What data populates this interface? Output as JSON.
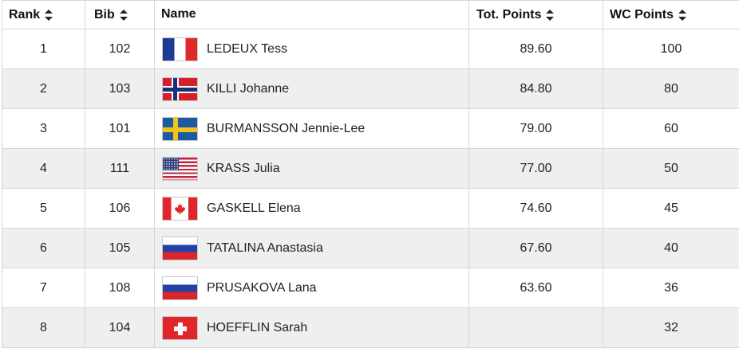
{
  "table": {
    "headers": {
      "rank": "Rank",
      "bib": "Bib",
      "name": "Name",
      "tot": "Tot. Points",
      "wc": "WC Points"
    },
    "rows": [
      {
        "rank": "1",
        "bib": "102",
        "flag": "france-flag-icon",
        "name": "LEDEUX Tess",
        "tot": "89.60",
        "wc": "100"
      },
      {
        "rank": "2",
        "bib": "103",
        "flag": "norway-flag-icon",
        "name": "KILLI Johanne",
        "tot": "84.80",
        "wc": "80"
      },
      {
        "rank": "3",
        "bib": "101",
        "flag": "sweden-flag-icon",
        "name": "BURMANSSON Jennie-Lee",
        "tot": "79.00",
        "wc": "60"
      },
      {
        "rank": "4",
        "bib": "111",
        "flag": "usa-flag-icon",
        "name": "KRASS Julia",
        "tot": "77.00",
        "wc": "50"
      },
      {
        "rank": "5",
        "bib": "106",
        "flag": "canada-flag-icon",
        "name": "GASKELL Elena",
        "tot": "74.60",
        "wc": "45"
      },
      {
        "rank": "6",
        "bib": "105",
        "flag": "russia-flag-icon",
        "name": "TATALINA Anastasia",
        "tot": "67.60",
        "wc": "40"
      },
      {
        "rank": "7",
        "bib": "108",
        "flag": "russia-flag-icon",
        "name": "PRUSAKOVA Lana",
        "tot": "63.60",
        "wc": "36"
      },
      {
        "rank": "8",
        "bib": "104",
        "flag": "switzerland-flag-icon",
        "name": "HOEFFLIN Sarah",
        "tot": "",
        "wc": "32"
      }
    ]
  },
  "colors": {
    "row_alt_background": "#efefef",
    "border": "#d7d7d7"
  }
}
